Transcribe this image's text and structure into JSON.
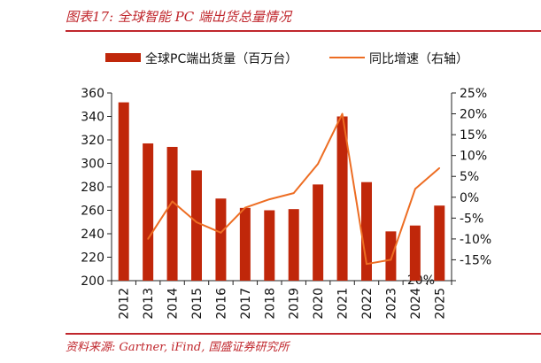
{
  "figure": {
    "title": "图表17:  全球智能 PC 端出货总量情况",
    "source": "资料来源: Gartner, iFind, 国盛证券研究所"
  },
  "colors": {
    "bar": "#c0270a",
    "line": "#ed6d23",
    "accent": "#c0272d",
    "axis": "#222222"
  },
  "chart_data": {
    "type": "bar",
    "categories": [
      "2012",
      "2013",
      "2014",
      "2015",
      "2016",
      "2017",
      "2018",
      "2019",
      "2020",
      "2021",
      "2022",
      "2023",
      "2024",
      "2025"
    ],
    "series": [
      {
        "name": "全球PC端出货量（百万台）",
        "type": "bar",
        "axis": "left",
        "values": [
          352,
          317,
          314,
          294,
          270,
          262,
          260,
          261,
          282,
          340,
          284,
          242,
          247,
          264
        ]
      },
      {
        "name": "同比增速（右轴）",
        "type": "line",
        "axis": "right",
        "values": [
          null,
          -10.0,
          -1.0,
          -6.0,
          -8.5,
          -2.5,
          -0.5,
          1.0,
          8.0,
          20.0,
          -16.0,
          -15.0,
          2.0,
          7.0
        ]
      }
    ],
    "y_left": {
      "ylim": [
        200,
        360
      ],
      "ticks": [
        "200",
        "220",
        "240",
        "260",
        "280",
        "300",
        "320",
        "340",
        "360"
      ]
    },
    "y_right": {
      "ylim": [
        -20,
        25
      ],
      "ticks": [
        "-20%",
        "-15%",
        "-10%",
        "-5%",
        "0%",
        "5%",
        "10%",
        "15%",
        "20%",
        "25%"
      ],
      "unit": "%"
    },
    "legend_position": "top",
    "grid": false
  }
}
